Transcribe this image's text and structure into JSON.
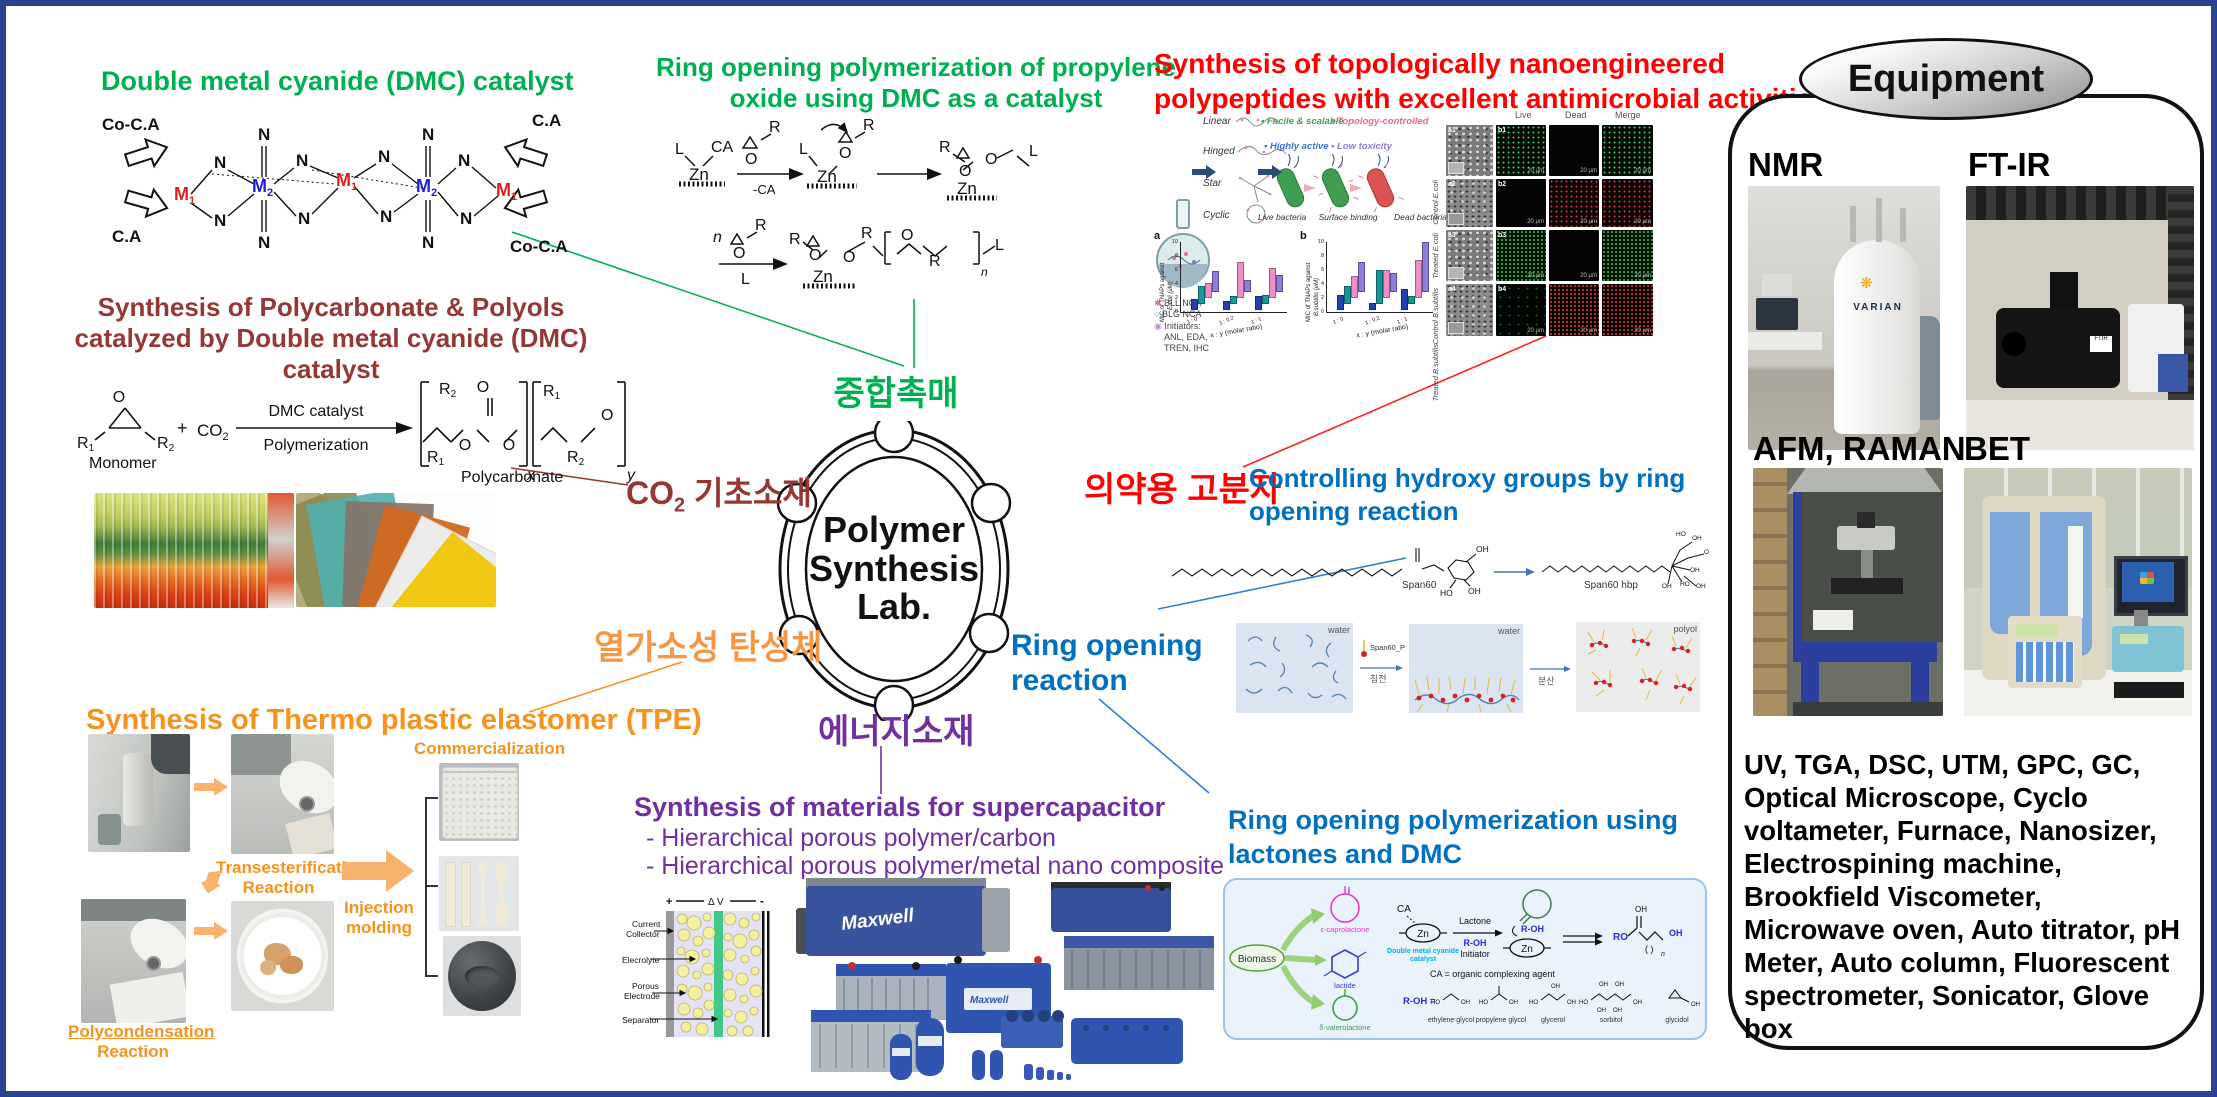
{
  "hub": {
    "l1": "Polymer",
    "l2": "Synthesis",
    "l3": "Lab."
  },
  "spokes": {
    "catalyst": "중합촉매",
    "co2_pre": "CO",
    "co2_sub": "2",
    "co2_post": " 기초소재",
    "pharma": "의약용 고분자",
    "elastomer": "열가소성 탄성체",
    "energy": "에너지소재",
    "ring_l1": "Ring opening",
    "ring_l2": "reaction"
  },
  "dmc": {
    "title": "Double metal cyanide (DMC) catalyst",
    "co_ca": "Co-C.A",
    "ca": "C.A",
    "m": "M",
    "s1": "1",
    "s2": "2",
    "n": "N"
  },
  "pc": {
    "t1": "Synthesis of Polycarbonate & Polyols",
    "t2": "catalyzed by Double metal cyanide (DMC) catalyst",
    "r": "R",
    "s1": "1",
    "s2": "2",
    "o": "O",
    "monomer": "Monomer",
    "plus": "+",
    "co2": "CO",
    "co2s": "2",
    "arr_top": "DMC catalyst",
    "arr_bot": "Polymerization",
    "prod": "Polycarbonate",
    "x": "x",
    "y": "y"
  },
  "po": {
    "t1": "Ring opening polymerization of propylene",
    "t2": "oxide using DMC as a catalyst",
    "l": "L",
    "ca": "CA",
    "zn": "Zn",
    "o": "O",
    "r": "R",
    "n": "n",
    "mca": "-CA"
  },
  "pep": {
    "t1": "Synthesis of topologically nanoengineered",
    "t2": "polypeptides with excellent antimicrobial activities",
    "leg1": "BLL NCA",
    "leg2": "BLG NCA",
    "leg3": "Initiators:",
    "leg4": "ANL, EDA,",
    "leg5": "TREN, IHC",
    "topo": [
      "Linear",
      "Hinged",
      "Star",
      "Cyclic"
    ],
    "bul": [
      "Facile & scalable",
      "Topology-controlled",
      "Highly active",
      "Low toxicity"
    ],
    "bact": [
      "Live bacteria",
      "Surface binding",
      "Dead bacteria"
    ],
    "hdr": [
      "Live",
      "Dead",
      "Merge"
    ],
    "rows": [
      "Control E.coli",
      "Treated E.coli",
      "Control B.subtilis",
      "Treated B.subtilis"
    ],
    "aid": [
      "a1",
      "a2",
      "a3",
      "a4"
    ],
    "bid": [
      "b1",
      "b2",
      "b3",
      "b4"
    ],
    "scale": "20 μm",
    "pa": "a",
    "pb": "b"
  },
  "chart_data": [
    {
      "type": "bar",
      "panel": "a",
      "ylabel": "MIC of TNAPs against",
      "ylabel2": "E.coli (μM)",
      "xlabel": "x : y (molar ratio)",
      "xticks": [
        "1 : 0",
        "1 : 0.2",
        "1 : 1"
      ],
      "ylim": [
        0,
        10
      ],
      "yticks": [
        0,
        2,
        4,
        6,
        8,
        10
      ],
      "legend_position": "none",
      "grid": false,
      "depth_colors": [
        "#2242b0",
        "#17989a",
        "#ef8fc7",
        "#8f7ae0"
      ],
      "values": [
        [
          1.5,
          1.2,
          2.0
        ],
        [
          2.8,
          1.0,
          1.2
        ],
        [
          2.2,
          5.8,
          4.9
        ],
        [
          3.2,
          1.8,
          2.6
        ]
      ]
    },
    {
      "type": "bar",
      "panel": "b",
      "ylabel": "MIC of TNAPs against",
      "ylabel2": "B.subtilis (μM)",
      "xlabel": "x : y (molar ratio)",
      "xticks": [
        "1 : 0",
        "1 : 0.2",
        "1 : 1"
      ],
      "ylim": [
        0,
        10
      ],
      "yticks": [
        0,
        2,
        4,
        6,
        8,
        10
      ],
      "legend_position": "none",
      "grid": false,
      "depth_colors": [
        "#2242b0",
        "#17989a",
        "#ef8fc7",
        "#8f7ae0"
      ],
      "values": [
        [
          2.3,
          0.9,
          3.2
        ],
        [
          2.8,
          5.5,
          1.1
        ],
        [
          3.5,
          4.4,
          6.2
        ],
        [
          4.9,
          3.0,
          8.3
        ]
      ]
    }
  ],
  "span": {
    "t1": "Controlling hydroxy groups by ring",
    "t2": "opening reaction",
    "s60": "Span60",
    "s60h": "Span60 hbp",
    "water": "water",
    "polyol": "polyol",
    "leg": "Span60_P",
    "a1": "침전",
    "a2": "분산",
    "oh": "OH",
    "ho": "HO"
  },
  "lac": {
    "t1": "Ring opening polymerization using",
    "t2": "lactones and DMC",
    "biomass": "Biomass",
    "cap": "ε-caprolactone",
    "lactide": "lactide",
    "val": "δ-valerolactone",
    "ca": "CA",
    "zn": "Zn",
    "dmc1": "Double metal cyanide",
    "dmc2": "catalyst",
    "lactone": "Lactone",
    "roh": "R-OH",
    "init": "Initiator",
    "caeq": "CA = organic complexing agent",
    "roheq": "R-OH =",
    "ro": "RO",
    "oh": "OH",
    "ho": "HO",
    "n": "n",
    "names": [
      "ethylene glycol",
      "propylene glycol",
      "glycerol",
      "sorbitol",
      "glycidol"
    ]
  },
  "tpe": {
    "title": "Synthesis of Thermo plastic elastomer (TPE)",
    "tr1": "Transesterification",
    "tr2": "Reaction",
    "pc1": "Polycondensation",
    "pc2": "Reaction",
    "inj1": "Injection",
    "inj2": "molding",
    "comm": "Commercialization"
  },
  "cap": {
    "title": "Synthesis of materials for supercapacitor",
    "b1": "-   Hierarchical porous polymer/carbon",
    "b2": "-   Hierarchical porous polymer/metal nano composite",
    "plus": "+",
    "dv": "Δ V",
    "minus": "-",
    "cc1": "Current",
    "cc2": "Collector",
    "el": "Elecrolyte",
    "pe1": "Porous",
    "pe2": "Electrode",
    "sep": "Separator",
    "maxwell": "Maxwell"
  },
  "equip": {
    "header": "Equipment",
    "nmr": "NMR",
    "ftir": "FT-IR",
    "afm": "AFM, RAMAN",
    "bet": "BET",
    "varian": "VARIAN",
    "list": "UV, TGA, DSC, UTM, GPC, GC, Optical Microscope, Cyclo voltameter, Furnace, Nanosizer, Electrospining machine, Brookfield Viscometer, Microwave oven, Auto titrator, pH Meter, Auto column, Fluorescent spectrometer, Sonicator, Glove box"
  }
}
